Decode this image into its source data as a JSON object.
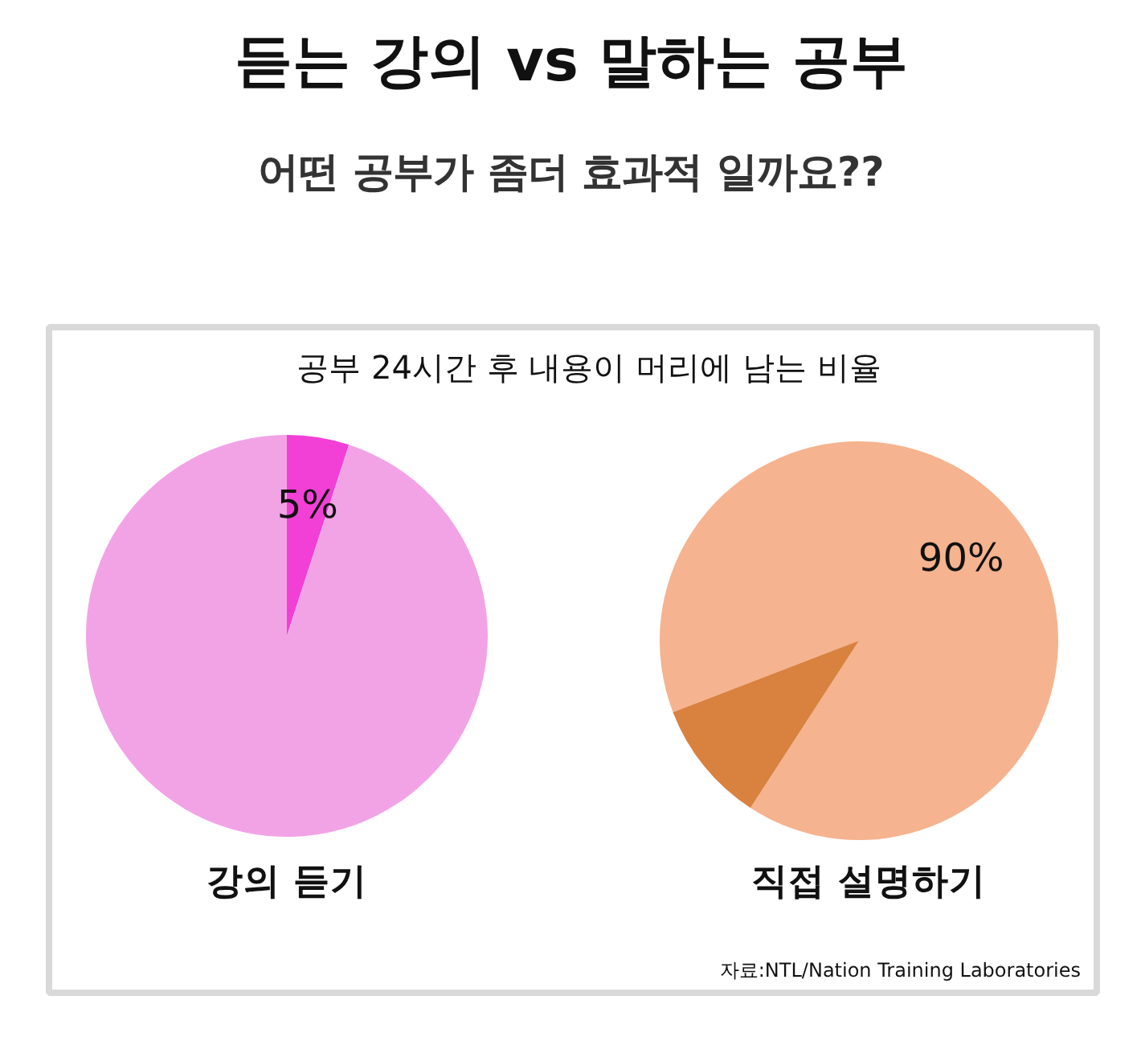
{
  "chart_data": [
    {
      "type": "pie",
      "title": "듣는 강의 vs 말하는 공부",
      "subtitle": "어떤 공부가 좀더 효과적 일까요??",
      "annotations": [
        "공부 24시간 후 내용이 머리에 남는 비율"
      ],
      "xlabel": "강의 듣기",
      "categories": [
        null,
        null
      ],
      "values": [
        5,
        95
      ],
      "colors": [
        "#f23fd6",
        "#f2a3e6"
      ],
      "value_labels": [
        "5%",
        null
      ]
    },
    {
      "type": "pie",
      "xlabel": "직접 설명하기",
      "annotations": [
        "자료:NTL/Nation Training Laboratories"
      ],
      "categories": [
        null,
        null
      ],
      "values": [
        90,
        10
      ],
      "colors": [
        "#f5b38f",
        "#d9813f"
      ],
      "value_labels": [
        "90%",
        null
      ]
    }
  ]
}
